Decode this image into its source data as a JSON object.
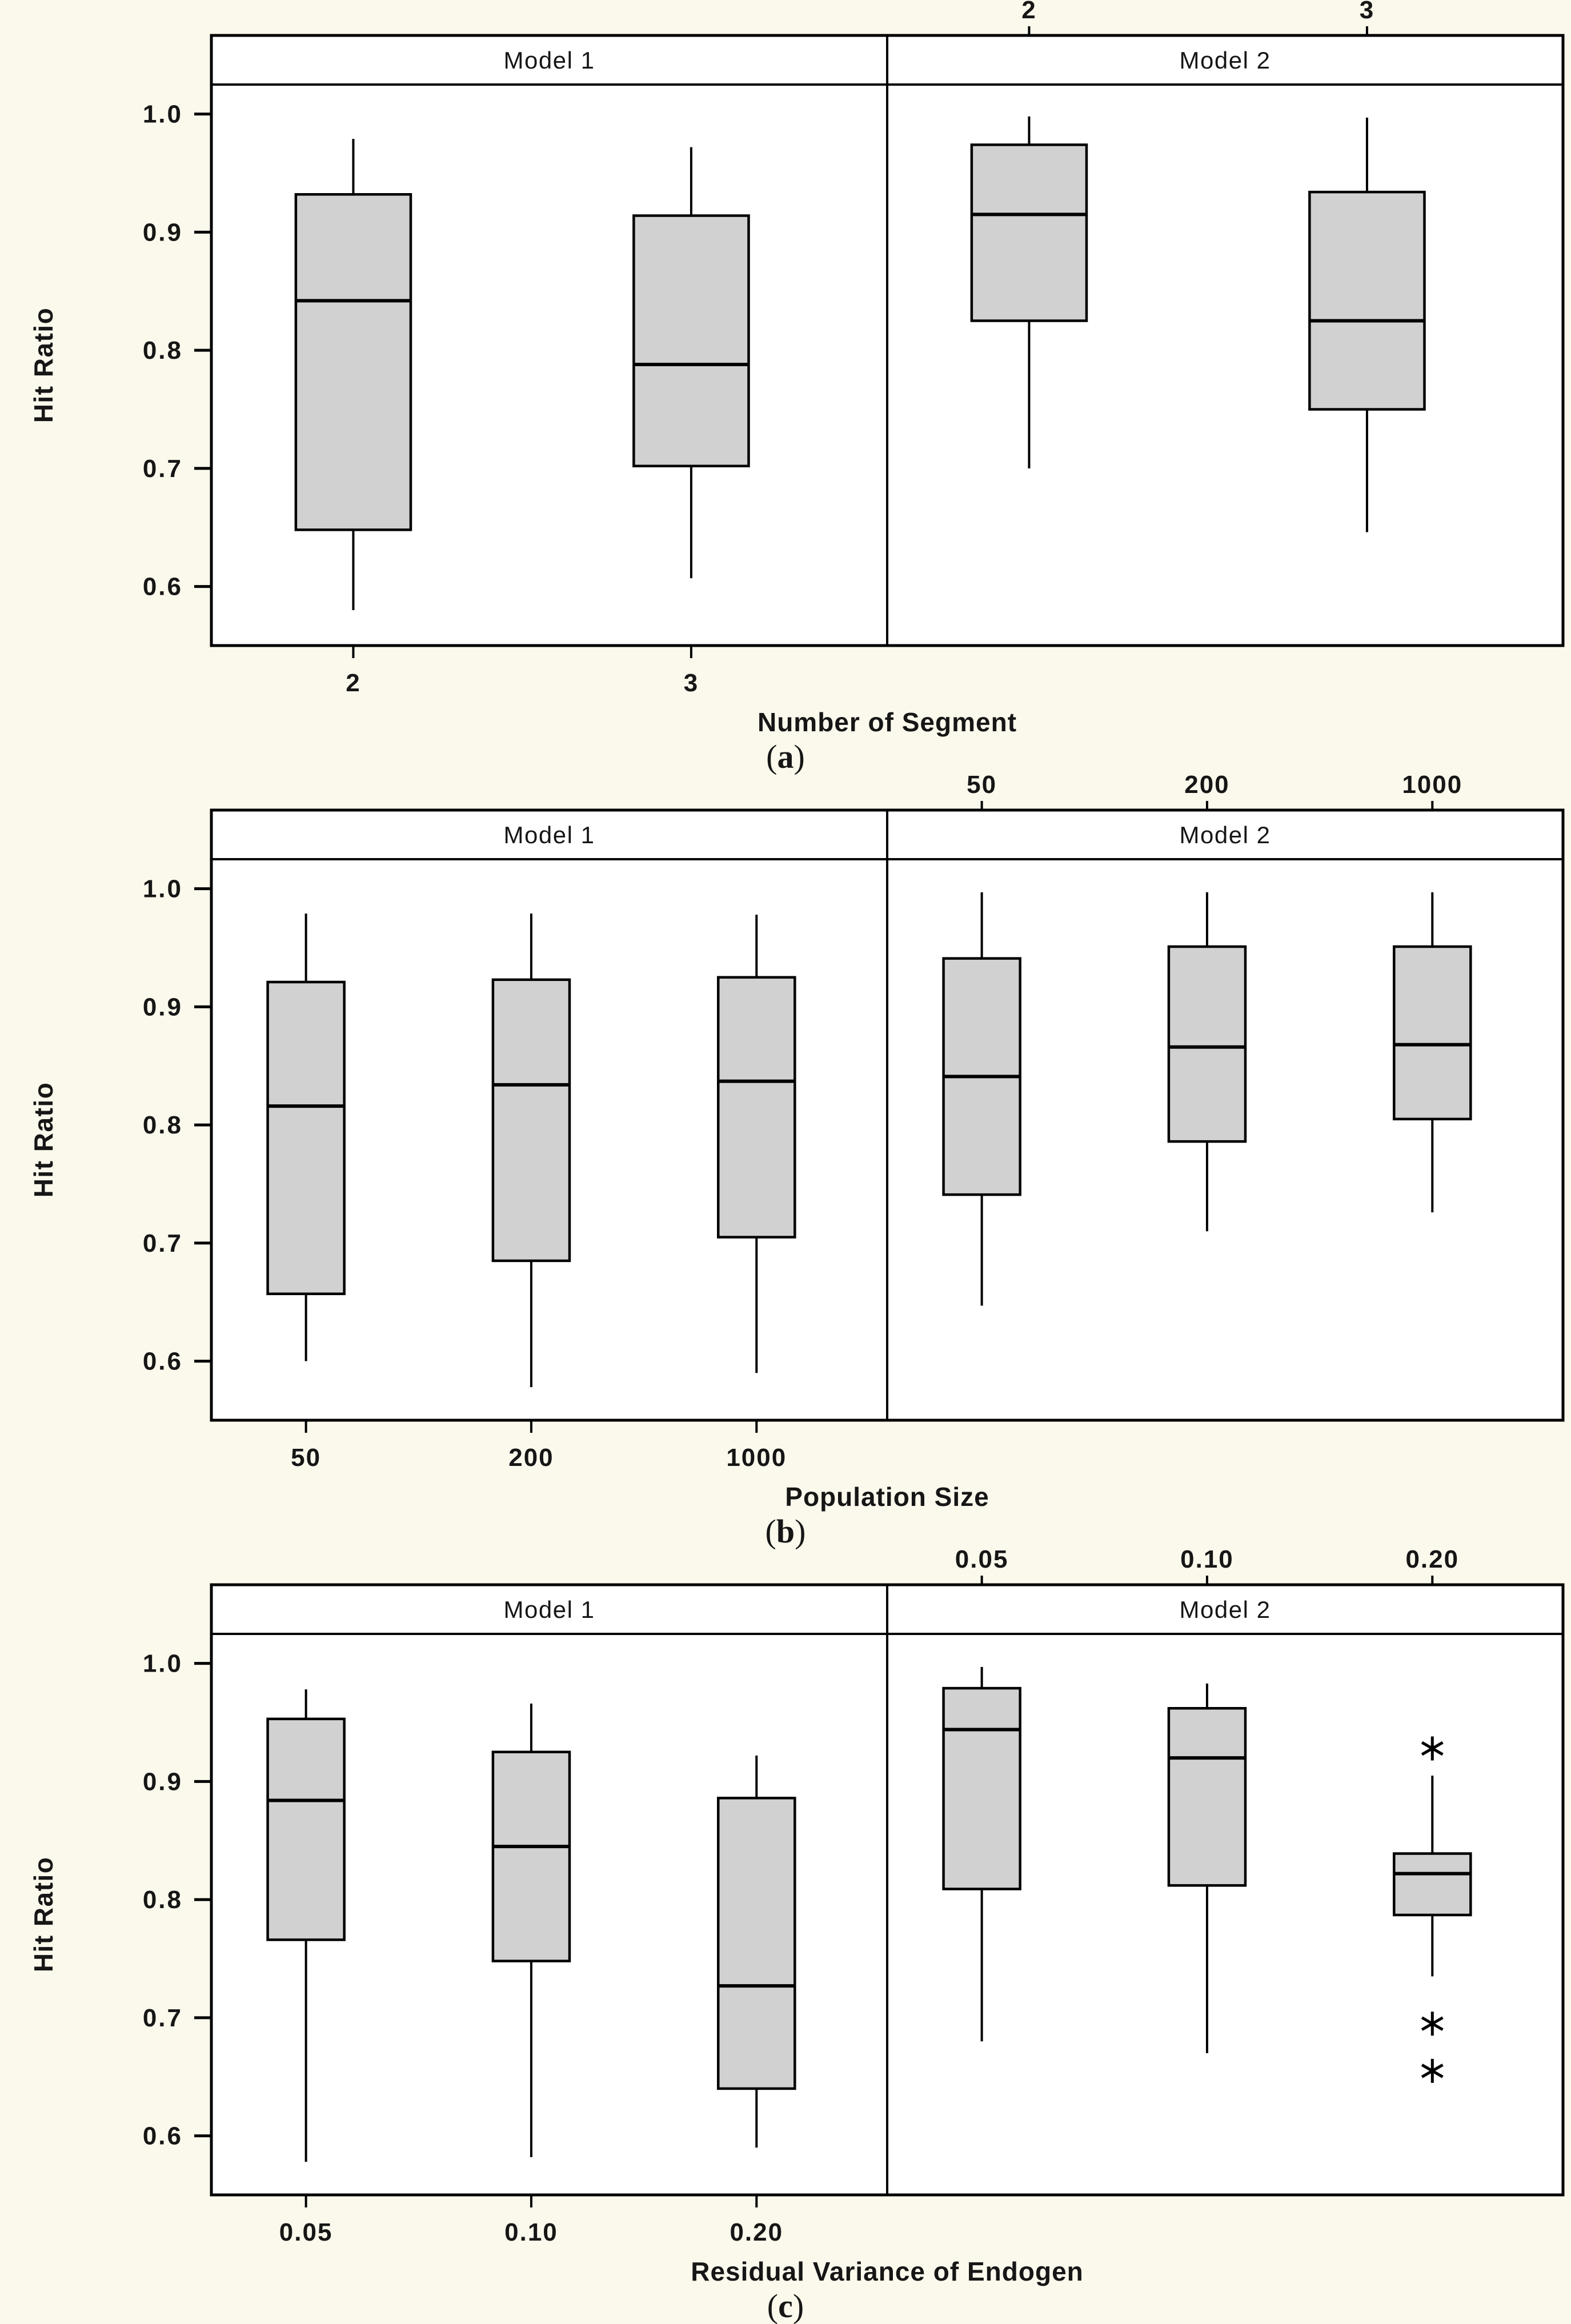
{
  "figure": {
    "background_color": "#fbf8ec",
    "plot_background_color": "#ffffff",
    "box_fill_color": "#d1d1d1",
    "line_color": "#000000",
    "text_color": "#161616"
  },
  "chart_data": [
    {
      "id": "a",
      "type": "boxplot",
      "caption_letter": "a",
      "facet_labels": [
        "Model 1",
        "Model 2"
      ],
      "categories": [
        "2",
        "3"
      ],
      "xlabel": "Number of Segment",
      "ylabel": "Hit Ratio",
      "ylim": [
        0.55,
        1.025
      ],
      "ytick_labels": [
        "1.0",
        "0.9",
        "0.8",
        "0.7",
        "0.6"
      ],
      "ytick_values": [
        1.0,
        0.9,
        0.8,
        0.7,
        0.6
      ],
      "legend": "none",
      "grid": false,
      "series": [
        {
          "facet": "Model 1",
          "boxes": [
            {
              "category": "2",
              "whisker_low": 0.58,
              "q1": 0.648,
              "median": 0.842,
              "q3": 0.932,
              "whisker_high": 0.979,
              "outliers": []
            },
            {
              "category": "3",
              "whisker_low": 0.607,
              "q1": 0.702,
              "median": 0.788,
              "q3": 0.914,
              "whisker_high": 0.972,
              "outliers": []
            }
          ]
        },
        {
          "facet": "Model 2",
          "boxes": [
            {
              "category": "2",
              "whisker_low": 0.7,
              "q1": 0.825,
              "median": 0.915,
              "q3": 0.974,
              "whisker_high": 0.998,
              "outliers": []
            },
            {
              "category": "3",
              "whisker_low": 0.646,
              "q1": 0.75,
              "median": 0.825,
              "q3": 0.934,
              "whisker_high": 0.997,
              "outliers": []
            }
          ]
        }
      ]
    },
    {
      "id": "b",
      "type": "boxplot",
      "caption_letter": "b",
      "facet_labels": [
        "Model 1",
        "Model 2"
      ],
      "categories": [
        "50",
        "200",
        "1000"
      ],
      "xlabel": "Population Size",
      "ylabel": "Hit Ratio",
      "ylim": [
        0.55,
        1.025
      ],
      "ytick_labels": [
        "1.0",
        "0.9",
        "0.8",
        "0.7",
        "0.6"
      ],
      "ytick_values": [
        1.0,
        0.9,
        0.8,
        0.7,
        0.6
      ],
      "legend": "none",
      "grid": false,
      "series": [
        {
          "facet": "Model 1",
          "boxes": [
            {
              "category": "50",
              "whisker_low": 0.6,
              "q1": 0.657,
              "median": 0.816,
              "q3": 0.921,
              "whisker_high": 0.979,
              "outliers": []
            },
            {
              "category": "200",
              "whisker_low": 0.578,
              "q1": 0.685,
              "median": 0.834,
              "q3": 0.923,
              "whisker_high": 0.979,
              "outliers": []
            },
            {
              "category": "1000",
              "whisker_low": 0.59,
              "q1": 0.705,
              "median": 0.837,
              "q3": 0.925,
              "whisker_high": 0.978,
              "outliers": []
            }
          ]
        },
        {
          "facet": "Model 2",
          "boxes": [
            {
              "category": "50",
              "whisker_low": 0.647,
              "q1": 0.741,
              "median": 0.841,
              "q3": 0.941,
              "whisker_high": 0.997,
              "outliers": []
            },
            {
              "category": "200",
              "whisker_low": 0.71,
              "q1": 0.786,
              "median": 0.866,
              "q3": 0.951,
              "whisker_high": 0.997,
              "outliers": []
            },
            {
              "category": "1000",
              "whisker_low": 0.726,
              "q1": 0.805,
              "median": 0.868,
              "q3": 0.951,
              "whisker_high": 0.997,
              "outliers": []
            }
          ]
        }
      ]
    },
    {
      "id": "c",
      "type": "boxplot",
      "caption_letter": "c",
      "facet_labels": [
        "Model 1",
        "Model 2"
      ],
      "categories": [
        "0.05",
        "0.10",
        "0.20"
      ],
      "xlabel": "Residual Variance of Endogen",
      "ylabel": "Hit Ratio",
      "ylim": [
        0.55,
        1.025
      ],
      "ytick_labels": [
        "1.0",
        "0.9",
        "0.8",
        "0.7",
        "0.6"
      ],
      "ytick_values": [
        1.0,
        0.9,
        0.8,
        0.7,
        0.6
      ],
      "legend": "none",
      "grid": false,
      "series": [
        {
          "facet": "Model 1",
          "boxes": [
            {
              "category": "0.05",
              "whisker_low": 0.578,
              "q1": 0.766,
              "median": 0.884,
              "q3": 0.953,
              "whisker_high": 0.978,
              "outliers": []
            },
            {
              "category": "0.10",
              "whisker_low": 0.582,
              "q1": 0.748,
              "median": 0.845,
              "q3": 0.925,
              "whisker_high": 0.966,
              "outliers": []
            },
            {
              "category": "0.20",
              "whisker_low": 0.59,
              "q1": 0.64,
              "median": 0.727,
              "q3": 0.886,
              "whisker_high": 0.922,
              "outliers": []
            }
          ]
        },
        {
          "facet": "Model 2",
          "boxes": [
            {
              "category": "0.05",
              "whisker_low": 0.68,
              "q1": 0.809,
              "median": 0.944,
              "q3": 0.979,
              "whisker_high": 0.997,
              "outliers": []
            },
            {
              "category": "0.10",
              "whisker_low": 0.67,
              "q1": 0.812,
              "median": 0.92,
              "q3": 0.962,
              "whisker_high": 0.983,
              "outliers": []
            },
            {
              "category": "0.20",
              "whisker_low": 0.735,
              "q1": 0.787,
              "median": 0.822,
              "q3": 0.839,
              "whisker_high": 0.905,
              "outliers": [
                0.928,
                0.695,
                0.655
              ]
            }
          ]
        }
      ]
    }
  ]
}
